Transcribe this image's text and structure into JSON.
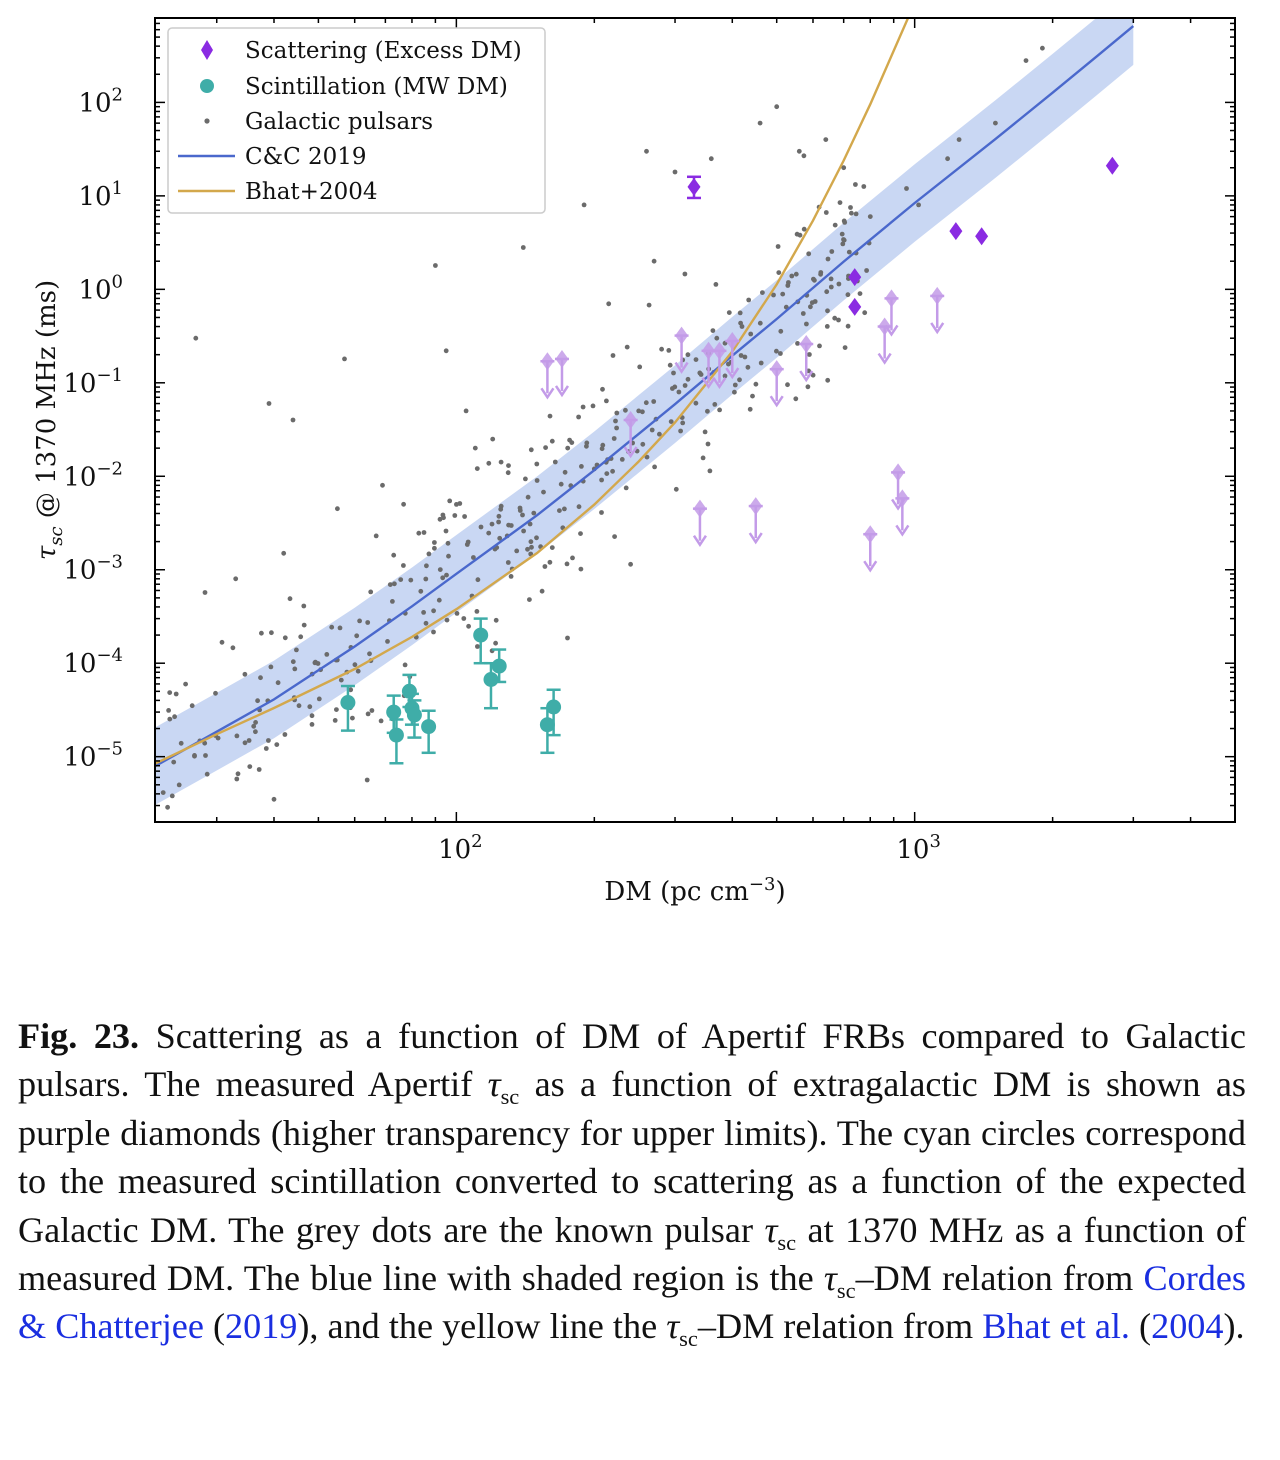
{
  "chart_data": {
    "type": "scatter",
    "xlabel": "DM (pc cm⁻³)",
    "ylabel": "τsc @ 1370 MHz (ms)",
    "xscale": "log",
    "yscale": "log",
    "xlim": [
      22,
      5000
    ],
    "ylim": [
      2e-06,
      800
    ],
    "x_ticks": [
      100,
      1000
    ],
    "y_ticks": [
      1e-05,
      0.0001,
      0.001,
      0.01,
      0.1,
      1,
      10,
      100
    ],
    "legend_placement": "top-left",
    "grid": false,
    "series": [
      {
        "name": "Scattering (Excess DM)",
        "marker": "diamond",
        "color": "#8a2be2",
        "points": [
          {
            "x": 330,
            "y": 12.5,
            "ylo": 9.5,
            "yhi": 16
          },
          {
            "x": 740,
            "y": 1.35
          },
          {
            "x": 740,
            "y": 0.65
          },
          {
            "x": 1230,
            "y": 4.2
          },
          {
            "x": 1400,
            "y": 3.7
          },
          {
            "x": 2700,
            "y": 21
          }
        ]
      },
      {
        "name": "Scattering (Excess DM) upper limits",
        "marker": "diamond",
        "color": "#c39be8",
        "upper_limit": true,
        "points": [
          {
            "x": 158,
            "y": 0.17
          },
          {
            "x": 170,
            "y": 0.18
          },
          {
            "x": 240,
            "y": 0.04
          },
          {
            "x": 310,
            "y": 0.32
          },
          {
            "x": 355,
            "y": 0.22
          },
          {
            "x": 375,
            "y": 0.22
          },
          {
            "x": 400,
            "y": 0.28
          },
          {
            "x": 500,
            "y": 0.14
          },
          {
            "x": 580,
            "y": 0.26
          },
          {
            "x": 860,
            "y": 0.4
          },
          {
            "x": 890,
            "y": 0.8
          },
          {
            "x": 1120,
            "y": 0.85
          },
          {
            "x": 340,
            "y": 0.0045
          },
          {
            "x": 450,
            "y": 0.0048
          },
          {
            "x": 800,
            "y": 0.0024
          },
          {
            "x": 920,
            "y": 0.011
          },
          {
            "x": 940,
            "y": 0.0058
          }
        ]
      },
      {
        "name": "Scintillation (MW DM)",
        "marker": "circle",
        "color": "#3fada8",
        "points": [
          {
            "x": 58,
            "y": 3.8e-05,
            "ylo": 1.9e-05,
            "yhi": 5.7e-05
          },
          {
            "x": 73,
            "y": 3e-05,
            "ylo": 1.8e-05,
            "yhi": 4.5e-05
          },
          {
            "x": 74,
            "y": 1.7e-05,
            "ylo": 8.5e-06,
            "yhi": 2.5e-05
          },
          {
            "x": 79,
            "y": 5e-05,
            "ylo": 3.4e-05,
            "yhi": 7.5e-05
          },
          {
            "x": 80,
            "y": 3.3e-05,
            "ylo": 2.2e-05,
            "yhi": 4.7e-05
          },
          {
            "x": 81,
            "y": 2.8e-05,
            "ylo": 1.6e-05,
            "yhi": 4e-05
          },
          {
            "x": 87,
            "y": 2.1e-05,
            "ylo": 1.1e-05,
            "yhi": 3.1e-05
          },
          {
            "x": 113,
            "y": 0.0002,
            "ylo": 0.0001,
            "yhi": 0.0003
          },
          {
            "x": 119,
            "y": 6.7e-05,
            "ylo": 3.3e-05,
            "yhi": 0.0001
          },
          {
            "x": 124,
            "y": 9.3e-05,
            "ylo": 6.3e-05,
            "yhi": 0.00014
          },
          {
            "x": 158,
            "y": 2.2e-05,
            "ylo": 1.1e-05,
            "yhi": 3.3e-05
          },
          {
            "x": 163,
            "y": 3.4e-05,
            "ylo": 1.7e-05,
            "yhi": 5.2e-05
          }
        ]
      },
      {
        "name": "Galactic pulsars",
        "marker": "dot",
        "color": "#6b6b6b",
        "points": [
          {
            "x": 27,
            "y": 0.3
          },
          {
            "x": 39,
            "y": 0.06
          },
          {
            "x": 42,
            "y": 0.0015
          },
          {
            "x": 44,
            "y": 0.04
          },
          {
            "x": 55,
            "y": 0.0045
          },
          {
            "x": 57,
            "y": 0.18
          },
          {
            "x": 33,
            "y": 0.0008
          },
          {
            "x": 40,
            "y": 3.5e-06
          },
          {
            "x": 24,
            "y": 3.8e-06
          },
          {
            "x": 90,
            "y": 1.8
          },
          {
            "x": 95,
            "y": 0.22
          },
          {
            "x": 69,
            "y": 0.008
          },
          {
            "x": 110,
            "y": 0.02
          },
          {
            "x": 140,
            "y": 2.8
          },
          {
            "x": 190,
            "y": 8
          },
          {
            "x": 215,
            "y": 0.7
          },
          {
            "x": 260,
            "y": 30
          },
          {
            "x": 270,
            "y": 2
          },
          {
            "x": 300,
            "y": 18
          },
          {
            "x": 360,
            "y": 25
          },
          {
            "x": 460,
            "y": 60
          },
          {
            "x": 500,
            "y": 90
          },
          {
            "x": 560,
            "y": 30
          },
          {
            "x": 640,
            "y": 40
          },
          {
            "x": 700,
            "y": 20
          },
          {
            "x": 720,
            "y": 2.5
          },
          {
            "x": 800,
            "y": 6
          },
          {
            "x": 960,
            "y": 12
          },
          {
            "x": 1020,
            "y": 8
          },
          {
            "x": 1180,
            "y": 25
          },
          {
            "x": 1250,
            "y": 40
          },
          {
            "x": 1500,
            "y": 60
          },
          {
            "x": 1900,
            "y": 380
          },
          {
            "x": 1750,
            "y": 280
          },
          {
            "x": 760,
            "y": 0.9
          },
          {
            "x": 420,
            "y": 0.4
          },
          {
            "x": 370,
            "y": 0.3
          },
          {
            "x": 320,
            "y": 0.2
          },
          {
            "x": 250,
            "y": 0.05
          },
          {
            "x": 200,
            "y": 0.012
          },
          {
            "x": 160,
            "y": 0.0012
          },
          {
            "x": 150,
            "y": 0.009
          },
          {
            "x": 175,
            "y": 0.02
          },
          {
            "x": 130,
            "y": 0.003
          },
          {
            "x": 120,
            "y": 0.025
          },
          {
            "x": 105,
            "y": 0.05
          },
          {
            "x": 100,
            "y": 0.005
          },
          {
            "x": 85,
            "y": 0.0025
          }
        ]
      },
      {
        "name": "C&C 2019",
        "type": "line",
        "color": "#4a68cc",
        "band_color": "#c9d7f3",
        "x": [
          22,
          30,
          40,
          60,
          80,
          100,
          150,
          200,
          300,
          400,
          500,
          700,
          1000,
          1500,
          2000,
          2500,
          3000
        ],
        "y": [
          7.9e-06,
          1.85e-05,
          4.1e-05,
          0.000151,
          0.000406,
          0.000905,
          0.00383,
          0.0116,
          0.059,
          0.195,
          0.482,
          1.98,
          8.38,
          40.5,
          127,
          312,
          655
        ]
      },
      {
        "name": "Bhat+2004",
        "type": "line",
        "color": "#d3a84c",
        "x": [
          22,
          30,
          40,
          60,
          80,
          100,
          150,
          200,
          250,
          300,
          400,
          500,
          600,
          700,
          800,
          1000
        ],
        "y": [
          8.4e-06,
          1.74e-05,
          3.32e-05,
          8.67e-05,
          0.000191,
          0.000378,
          0.00151,
          0.00498,
          0.0144,
          0.0376,
          0.216,
          1.13,
          5.44,
          23.9,
          95.6,
          1164
        ]
      }
    ]
  },
  "caption": {
    "label": "Fig. 23.",
    "seg1": " Scattering as a function of DM of Apertif FRBs compared to Galactic pulsars. The measured Apertif ",
    "tau1": "τ",
    "sub1": "sc",
    "seg2": " as a function of extragalactic DM is shown as purple diamonds (higher transparency for upper limits). The cyan circles correspond to the measured scintillation converted to scattering as a function of the expected Galactic DM. The grey dots are the known pulsar ",
    "tau2": "τ",
    "sub2": "sc",
    "seg3": " at 1370 MHz as a function of measured DM. The blue line with shaded region is the ",
    "tau3": "τ",
    "sub3": "sc",
    "seg4": "–DM relation from ",
    "ref1": "Cordes & Chatterjee",
    "seg5": " (",
    "ref1_year": "2019",
    "seg6": "), and the yellow line the ",
    "tau4": "τ",
    "sub4": "sc",
    "seg7": "–DM relation from ",
    "ref2": "Bhat et al.",
    "seg8": " (",
    "ref2_year": "2004",
    "seg9": ")."
  }
}
